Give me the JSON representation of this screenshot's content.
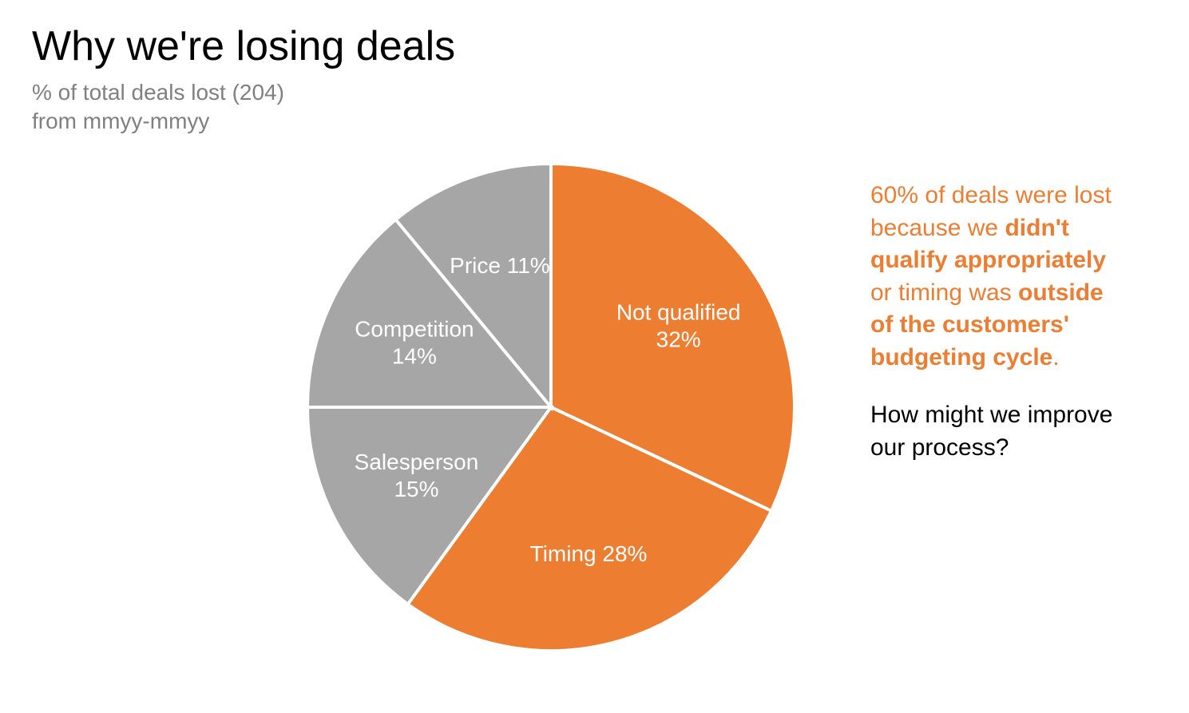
{
  "title": "Why we're losing deals",
  "subtitle_line1": "% of total deals lost (204)",
  "subtitle_line2": "from mmyy-mmyy",
  "chart": {
    "type": "pie",
    "background_color": "#ffffff",
    "stroke_color": "#ffffff",
    "stroke_width": 4,
    "radius": 305,
    "label_fontsize": 28,
    "label_color": "#ffffff",
    "slices": [
      {
        "label_line1": "Not qualified",
        "label_line2": "32%",
        "value": 32,
        "color": "#ed7d31"
      },
      {
        "label_line1": "Timing 28%",
        "label_line2": "",
        "value": 28,
        "color": "#ed7d31"
      },
      {
        "label_line1": "Salesperson",
        "label_line2": "15%",
        "value": 15,
        "color": "#a6a6a6"
      },
      {
        "label_line1": "Competition",
        "label_line2": "14%",
        "value": 14,
        "color": "#a6a6a6"
      },
      {
        "label_line1": "Price 11%",
        "label_line2": "",
        "value": 11,
        "color": "#a6a6a6"
      }
    ]
  },
  "callout": {
    "color": "#ed7d31",
    "parts": [
      {
        "text": "60% of deals were lost because we ",
        "bold": false
      },
      {
        "text": "didn't qualify appropriately",
        "bold": true
      },
      {
        "text": " or timing was ",
        "bold": false
      },
      {
        "text": "outside of the customers' budgeting cycle",
        "bold": true
      },
      {
        "text": ".",
        "bold": false
      }
    ]
  },
  "question": "How might we improve our process?"
}
